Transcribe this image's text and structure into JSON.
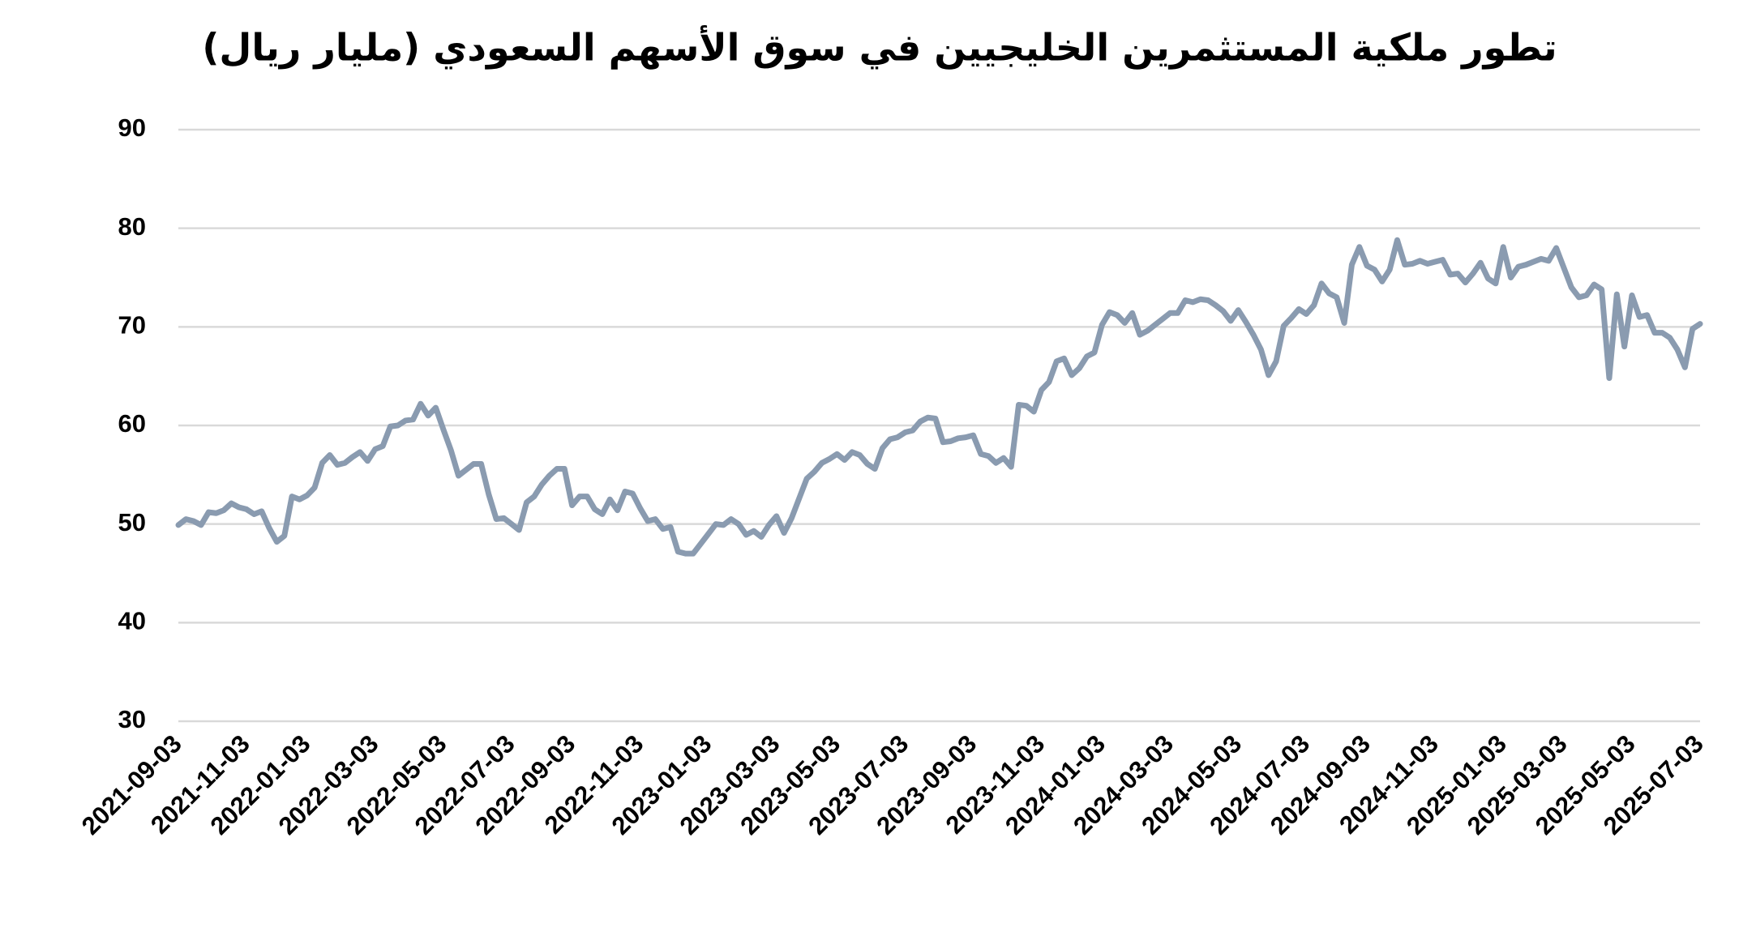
{
  "chart_data": {
    "type": "line",
    "title": "تطور ملكية المستثمرين الخليجيين في سوق الأسهم السعودي (مليار ريال)",
    "categories": [
      "2021-09-03",
      null,
      null,
      null,
      null,
      null,
      null,
      null,
      null,
      "2021-11-03",
      null,
      null,
      null,
      null,
      null,
      null,
      null,
      "2022-01-03",
      null,
      null,
      null,
      null,
      null,
      null,
      null,
      null,
      "2022-03-03",
      null,
      null,
      null,
      null,
      null,
      null,
      null,
      null,
      "2022-05-03",
      null,
      null,
      null,
      null,
      null,
      null,
      null,
      null,
      "2022-07-03",
      null,
      null,
      null,
      null,
      null,
      null,
      null,
      "2022-09-03",
      null,
      null,
      null,
      null,
      null,
      null,
      null,
      null,
      "2022-11-03",
      null,
      null,
      null,
      null,
      null,
      null,
      null,
      null,
      "2023-01-03",
      null,
      null,
      null,
      null,
      null,
      null,
      null,
      null,
      "2023-03-03",
      null,
      null,
      null,
      null,
      null,
      null,
      null,
      "2023-05-03",
      null,
      null,
      null,
      null,
      null,
      null,
      null,
      null,
      "2023-07-03",
      null,
      null,
      null,
      null,
      null,
      null,
      null,
      null,
      "2023-09-03",
      null,
      null,
      null,
      null,
      null,
      null,
      null,
      null,
      "2023-11-03",
      null,
      null,
      null,
      null,
      null,
      null,
      null,
      "2024-01-03",
      null,
      null,
      null,
      null,
      null,
      null,
      null,
      null,
      "2024-03-03",
      null,
      null,
      null,
      null,
      null,
      null,
      null,
      null,
      "2024-05-03",
      null,
      null,
      null,
      null,
      null,
      null,
      null,
      null,
      "2024-07-03",
      null,
      null,
      null,
      null,
      null,
      null,
      null,
      "2024-09-03",
      null,
      null,
      null,
      null,
      null,
      null,
      null,
      null,
      "2024-11-03",
      null,
      null,
      null,
      null,
      null,
      null,
      null,
      null,
      "2025-01-03",
      null,
      null,
      null,
      null,
      null,
      null,
      null,
      "2025-03-03",
      null,
      null,
      null,
      null,
      null,
      null,
      null,
      null,
      "2025-05-03",
      null,
      null,
      null,
      null,
      null,
      null,
      null,
      null,
      "2025-07-03"
    ],
    "values": [
      49.9,
      50.5,
      50.3,
      49.9,
      51.2,
      51.1,
      51.4,
      52.1,
      51.7,
      51.5,
      51.0,
      51.3,
      49.6,
      48.2,
      48.8,
      52.8,
      52.5,
      52.9,
      53.7,
      56.2,
      57.0,
      56.0,
      56.2,
      56.8,
      57.3,
      56.4,
      57.6,
      57.9,
      59.9,
      60.0,
      60.5,
      60.6,
      62.2,
      61.0,
      61.8,
      59.6,
      57.5,
      54.9,
      55.5,
      56.1,
      56.1,
      53.0,
      50.5,
      50.6,
      50.0,
      49.4,
      52.2,
      52.8,
      54.0,
      54.9,
      55.6,
      55.6,
      51.9,
      52.8,
      52.8,
      51.5,
      51.0,
      52.5,
      51.4,
      53.3,
      53.1,
      51.6,
      50.3,
      50.5,
      49.5,
      49.7,
      47.2,
      47.0,
      47.0,
      48.0,
      49.0,
      50.0,
      49.9,
      50.5,
      50.0,
      48.9,
      49.3,
      48.7,
      49.9,
      50.8,
      49.1,
      50.6,
      52.6,
      54.6,
      55.3,
      56.2,
      56.6,
      57.1,
      56.5,
      57.3,
      57.0,
      56.1,
      55.6,
      57.7,
      58.6,
      58.8,
      59.3,
      59.5,
      60.4,
      60.8,
      60.7,
      58.3,
      58.4,
      58.7,
      58.8,
      59.0,
      57.1,
      56.9,
      56.2,
      56.7,
      55.8,
      62.1,
      62.0,
      61.4,
      63.6,
      64.4,
      66.5,
      66.8,
      65.1,
      65.8,
      67.0,
      67.4,
      70.2,
      71.5,
      71.2,
      70.4,
      71.4,
      69.2,
      69.6,
      70.2,
      70.8,
      71.4,
      71.4,
      72.7,
      72.5,
      72.8,
      72.7,
      72.2,
      71.6,
      70.6,
      71.7,
      70.5,
      69.2,
      67.7,
      65.1,
      66.5,
      70.1,
      70.9,
      71.8,
      71.3,
      72.2,
      74.4,
      73.4,
      73.0,
      70.4,
      76.3,
      78.1,
      76.2,
      75.8,
      74.6,
      75.8,
      78.8,
      76.3,
      76.4,
      76.7,
      76.4,
      76.6,
      76.8,
      75.3,
      75.4,
      74.5,
      75.4,
      76.5,
      74.9,
      74.4,
      78.1,
      75.0,
      76.1,
      76.3,
      76.6,
      76.9,
      76.7,
      78.0,
      76.0,
      74.0,
      73.0,
      73.2,
      74.3,
      73.8,
      64.8,
      73.3,
      68.0,
      73.2,
      71.0,
      71.2,
      69.4,
      69.4,
      68.9,
      67.7,
      65.9,
      69.8,
      70.3
    ],
    "color": "#8a9bb0",
    "ylim": [
      30,
      90
    ],
    "yticks": [
      30,
      40,
      50,
      60,
      70,
      80,
      90
    ],
    "grid": true
  }
}
